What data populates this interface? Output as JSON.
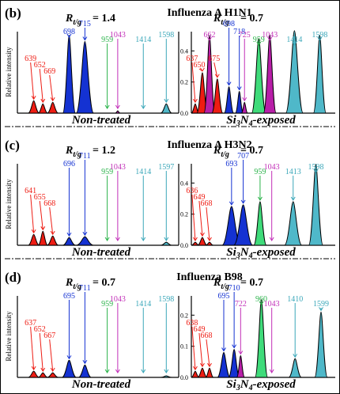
{
  "figure": {
    "ylabel": "Relative intensity",
    "colors": {
      "red": "#ee1c13",
      "blue": "#1432d2",
      "magenta": "#b81ea8",
      "green": "#3fdb7a",
      "cyan": "#4fb8c9",
      "label_green": "#2ab34a",
      "label_magenta": "#c22fb8",
      "label_cyan": "#3aa7b9"
    }
  },
  "chart_data": [
    {
      "type": "area",
      "panel": "(b)",
      "title": "Influenza A H1N1",
      "ratio_left": "= 1.4",
      "ratio_right": "= 0.7",
      "left": {
        "label_parts": [
          "Non-treated"
        ],
        "ylim": [
          0,
          0.6
        ],
        "ticks": [],
        "peaks": [
          {
            "label": "639",
            "value": 0.08,
            "color": "red"
          },
          {
            "label": "652",
            "value": 0.06,
            "color": "red"
          },
          {
            "label": "669",
            "value": 0.07,
            "color": "red"
          },
          {
            "label": "698",
            "value": 0.5,
            "color": "blue"
          },
          {
            "label": "715",
            "value": 0.46,
            "color": "blue"
          },
          {
            "label": "959",
            "value": 0.0,
            "color": "green"
          },
          {
            "label": "1043",
            "value": 0.015,
            "color": "magenta"
          },
          {
            "label": "1414",
            "value": 0.0,
            "color": "cyan"
          },
          {
            "label": "1598",
            "value": 0.06,
            "color": "cyan"
          }
        ]
      },
      "right": {
        "label_parts": [
          "Si",
          "3",
          "N",
          "4",
          "-exposed"
        ],
        "ylim": [
          0,
          0.6
        ],
        "ticks": [
          "0.0",
          "0.2",
          "0.4"
        ],
        "peaks": [
          {
            "label": "637",
            "value": 0.06,
            "color": "red"
          },
          {
            "label": "650",
            "value": 0.26,
            "color": "red"
          },
          {
            "label": "662",
            "value": 0.5,
            "color": "magenta"
          },
          {
            "label": "675",
            "value": 0.22,
            "color": "red"
          },
          {
            "label": "698",
            "value": 0.17,
            "color": "blue"
          },
          {
            "label": "718",
            "value": 0.14,
            "color": "blue"
          },
          {
            "label": "725",
            "value": 0.07,
            "color": "magenta"
          },
          {
            "label": "959",
            "value": 0.48,
            "color": "green"
          },
          {
            "label": "1043",
            "value": 0.5,
            "color": "magenta"
          },
          {
            "label": "1414",
            "value": 0.53,
            "color": "cyan"
          },
          {
            "label": "1598",
            "value": 0.5,
            "color": "cyan"
          }
        ]
      }
    },
    {
      "type": "area",
      "panel": "(c)",
      "title": "Influenza A H3N2",
      "ratio_left": "= 1.2",
      "ratio_right": "= 0.7",
      "left": {
        "label_parts": [
          "Non-treated"
        ],
        "ylim": [
          0,
          0.6
        ],
        "ticks": [],
        "peaks": [
          {
            "label": "641",
            "value": 0.07,
            "color": "red"
          },
          {
            "label": "655",
            "value": 0.09,
            "color": "red"
          },
          {
            "label": "668",
            "value": 0.06,
            "color": "red"
          },
          {
            "label": "696",
            "value": 0.05,
            "color": "blue"
          },
          {
            "label": "711",
            "value": 0.055,
            "color": "blue"
          },
          {
            "label": "959",
            "value": 0.0,
            "color": "green"
          },
          {
            "label": "1043",
            "value": 0.0,
            "color": "magenta"
          },
          {
            "label": "1414",
            "value": 0.0,
            "color": "cyan"
          },
          {
            "label": "1597",
            "value": 0.02,
            "color": "cyan"
          }
        ]
      },
      "right": {
        "label_parts": [
          "Si",
          "3",
          "N",
          "4",
          "-exposed"
        ],
        "ylim": [
          0,
          0.6
        ],
        "ticks": [
          "0.0",
          "0.2",
          "0.4"
        ],
        "peaks": [
          {
            "label": "636",
            "value": 0.02,
            "color": "red"
          },
          {
            "label": "649",
            "value": 0.05,
            "color": "red"
          },
          {
            "label": "668",
            "value": 0.02,
            "color": "red"
          },
          {
            "label": "693",
            "value": 0.25,
            "color": "blue"
          },
          {
            "label": "707",
            "value": 0.26,
            "color": "blue"
          },
          {
            "label": "959",
            "value": 0.28,
            "color": "green"
          },
          {
            "label": "1043",
            "value": 0.0,
            "color": "magenta"
          },
          {
            "label": "1413",
            "value": 0.28,
            "color": "cyan"
          },
          {
            "label": "1598",
            "value": 0.52,
            "color": "cyan"
          }
        ]
      }
    },
    {
      "type": "area",
      "panel": "(d)",
      "title": "Influenza B98",
      "ratio_left": "= 0.7",
      "ratio_right": "= 0.7",
      "left": {
        "label_parts": [
          "Non-treated"
        ],
        "ylim": [
          0,
          0.6
        ],
        "ticks": [],
        "peaks": [
          {
            "label": "637",
            "value": 0.04,
            "color": "red"
          },
          {
            "label": "652",
            "value": 0.03,
            "color": "red"
          },
          {
            "label": "667",
            "value": 0.03,
            "color": "red"
          },
          {
            "label": "695",
            "value": 0.11,
            "color": "blue"
          },
          {
            "label": "711",
            "value": 0.08,
            "color": "blue"
          },
          {
            "label": "959",
            "value": 0.0,
            "color": "green"
          },
          {
            "label": "1043",
            "value": 0.0,
            "color": "magenta"
          },
          {
            "label": "1414",
            "value": 0.0,
            "color": "cyan"
          },
          {
            "label": "1598",
            "value": 0.01,
            "color": "cyan"
          }
        ]
      },
      "right": {
        "label_parts": [
          "Si",
          "3",
          "N",
          "4",
          "-exposed"
        ],
        "ylim": [
          0,
          0.3
        ],
        "ticks": [
          "0.0",
          "0.1",
          "0.2"
        ],
        "peaks": [
          {
            "label": "638",
            "value": 0.02,
            "color": "red"
          },
          {
            "label": "649",
            "value": 0.03,
            "color": "red"
          },
          {
            "label": "668",
            "value": 0.03,
            "color": "red"
          },
          {
            "label": "695",
            "value": 0.08,
            "color": "blue"
          },
          {
            "label": "710",
            "value": 0.09,
            "color": "blue"
          },
          {
            "label": "722",
            "value": 0.07,
            "color": "magenta"
          },
          {
            "label": "960",
            "value": 0.25,
            "color": "green"
          },
          {
            "label": "1043",
            "value": 0.0,
            "color": "magenta"
          },
          {
            "label": "1410",
            "value": 0.06,
            "color": "cyan"
          },
          {
            "label": "1599",
            "value": 0.21,
            "color": "cyan"
          }
        ]
      }
    }
  ]
}
